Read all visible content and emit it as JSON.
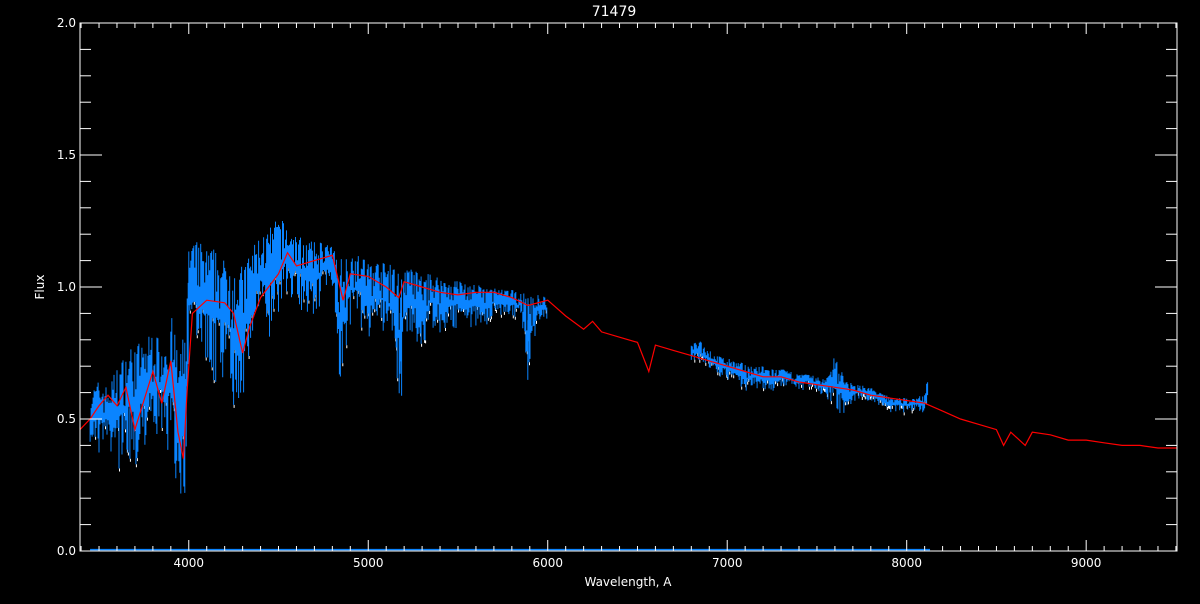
{
  "chart_data": {
    "type": "line",
    "title": "71479",
    "xlabel": "Wavelength, A",
    "ylabel": "Flux",
    "xlim": [
      3394,
      9506
    ],
    "ylim": [
      0.0,
      2.0
    ],
    "x_ticks": [
      4000,
      5000,
      6000,
      7000,
      8000,
      9000
    ],
    "x_tick_labels": [
      "4000",
      "5000",
      "6000",
      "7000",
      "8000",
      "9000"
    ],
    "y_ticks": [
      0.0,
      0.5,
      1.0,
      1.5,
      2.0
    ],
    "y_tick_labels": [
      "0.0",
      "0.5",
      "1.0",
      "1.5",
      "2.0"
    ],
    "x_minor_step": 100,
    "y_minor_step": 0.1,
    "grid": false,
    "colors": {
      "background": "#000000",
      "axes": "#ffffff",
      "observed": "#0a84ff",
      "observed_alt": "#ffffff",
      "model": "#ff0000"
    },
    "series": [
      {
        "role": "observed",
        "format": "wavelength, flux_min, flux_max",
        "segments": [
          [
            [
              3450,
              0.4,
              0.6
            ],
            [
              3500,
              0.35,
              0.65
            ],
            [
              3550,
              0.38,
              0.62
            ],
            [
              3600,
              0.3,
              0.7
            ],
            [
              3650,
              0.35,
              0.75
            ],
            [
              3700,
              0.28,
              0.8
            ],
            [
              3750,
              0.4,
              0.78
            ],
            [
              3800,
              0.38,
              0.85
            ],
            [
              3850,
              0.45,
              0.78
            ],
            [
              3900,
              0.3,
              0.9
            ],
            [
              3950,
              0.12,
              0.75
            ],
            [
              3980,
              0.2,
              0.85
            ],
            [
              4000,
              0.75,
              1.15
            ],
            [
              4050,
              0.7,
              1.18
            ],
            [
              4100,
              0.65,
              1.15
            ],
            [
              4150,
              0.62,
              1.15
            ],
            [
              4200,
              0.65,
              1.1
            ],
            [
              4250,
              0.55,
              1.1
            ],
            [
              4300,
              0.5,
              1.08
            ],
            [
              4350,
              0.75,
              1.15
            ],
            [
              4400,
              0.85,
              1.2
            ],
            [
              4450,
              0.8,
              1.22
            ],
            [
              4500,
              0.9,
              1.27
            ],
            [
              4550,
              0.95,
              1.23
            ],
            [
              4600,
              0.92,
              1.2
            ],
            [
              4650,
              0.9,
              1.18
            ],
            [
              4700,
              0.85,
              1.17
            ],
            [
              4750,
              0.95,
              1.18
            ],
            [
              4800,
              1.0,
              1.15
            ],
            [
              4850,
              0.55,
              1.12
            ],
            [
              4900,
              0.85,
              1.14
            ],
            [
              4950,
              0.85,
              1.12
            ],
            [
              5000,
              0.8,
              1.1
            ],
            [
              5050,
              0.82,
              1.1
            ],
            [
              5100,
              0.8,
              1.09
            ],
            [
              5150,
              0.7,
              1.08
            ],
            [
              5180,
              0.5,
              1.05
            ],
            [
              5200,
              0.75,
              1.07
            ],
            [
              5250,
              0.8,
              1.07
            ],
            [
              5300,
              0.7,
              1.05
            ],
            [
              5350,
              0.85,
              1.05
            ],
            [
              5400,
              0.82,
              1.04
            ],
            [
              5450,
              0.82,
              1.03
            ],
            [
              5500,
              0.85,
              1.03
            ],
            [
              5550,
              0.82,
              1.02
            ],
            [
              5600,
              0.85,
              1.01
            ],
            [
              5650,
              0.85,
              1.0
            ],
            [
              5700,
              0.88,
              1.0
            ],
            [
              5750,
              0.88,
              0.99
            ],
            [
              5800,
              0.88,
              0.99
            ],
            [
              5850,
              0.88,
              0.98
            ],
            [
              5890,
              0.62,
              0.97
            ],
            [
              5950,
              0.87,
              0.97
            ],
            [
              6000,
              0.88,
              0.96
            ]
          ],
          [
            [
              6800,
              0.72,
              0.78
            ],
            [
              6850,
              0.7,
              0.8
            ],
            [
              6900,
              0.68,
              0.76
            ],
            [
              6950,
              0.66,
              0.74
            ],
            [
              7000,
              0.65,
              0.73
            ],
            [
              7050,
              0.62,
              0.72
            ],
            [
              7100,
              0.6,
              0.71
            ],
            [
              7150,
              0.62,
              0.7
            ],
            [
              7200,
              0.6,
              0.7
            ],
            [
              7250,
              0.6,
              0.69
            ],
            [
              7300,
              0.62,
              0.69
            ],
            [
              7350,
              0.62,
              0.68
            ],
            [
              7400,
              0.6,
              0.67
            ],
            [
              7450,
              0.62,
              0.67
            ],
            [
              7500,
              0.6,
              0.66
            ],
            [
              7550,
              0.58,
              0.65
            ],
            [
              7600,
              0.5,
              0.76
            ],
            [
              7650,
              0.52,
              0.66
            ],
            [
              7700,
              0.56,
              0.63
            ],
            [
              7750,
              0.58,
              0.63
            ],
            [
              7800,
              0.56,
              0.62
            ],
            [
              7850,
              0.55,
              0.6
            ],
            [
              7900,
              0.51,
              0.59
            ],
            [
              7950,
              0.53,
              0.58
            ],
            [
              8000,
              0.52,
              0.58
            ],
            [
              8050,
              0.53,
              0.58
            ],
            [
              8100,
              0.52,
              0.6
            ],
            [
              8120,
              0.57,
              0.67
            ]
          ]
        ],
        "error_level": {
          "x_range": [
            3450,
            8130
          ],
          "flux": 0.005
        }
      },
      {
        "role": "model",
        "points": [
          [
            3394,
            0.46
          ],
          [
            3450,
            0.5
          ],
          [
            3500,
            0.55
          ],
          [
            3550,
            0.59
          ],
          [
            3600,
            0.55
          ],
          [
            3650,
            0.62
          ],
          [
            3700,
            0.46
          ],
          [
            3750,
            0.57
          ],
          [
            3800,
            0.68
          ],
          [
            3850,
            0.56
          ],
          [
            3900,
            0.72
          ],
          [
            3940,
            0.45
          ],
          [
            3970,
            0.35
          ],
          [
            3990,
            0.6
          ],
          [
            4020,
            0.9
          ],
          [
            4100,
            0.95
          ],
          [
            4200,
            0.94
          ],
          [
            4250,
            0.9
          ],
          [
            4300,
            0.75
          ],
          [
            4340,
            0.85
          ],
          [
            4400,
            0.96
          ],
          [
            4500,
            1.05
          ],
          [
            4550,
            1.13
          ],
          [
            4600,
            1.08
          ],
          [
            4700,
            1.1
          ],
          [
            4800,
            1.12
          ],
          [
            4860,
            0.95
          ],
          [
            4900,
            1.05
          ],
          [
            5000,
            1.04
          ],
          [
            5100,
            1.0
          ],
          [
            5170,
            0.96
          ],
          [
            5200,
            1.02
          ],
          [
            5300,
            1.0
          ],
          [
            5400,
            0.98
          ],
          [
            5500,
            0.97
          ],
          [
            5600,
            0.98
          ],
          [
            5700,
            0.98
          ],
          [
            5800,
            0.96
          ],
          [
            5890,
            0.93
          ],
          [
            6000,
            0.95
          ],
          [
            6050,
            0.92
          ],
          [
            6100,
            0.89
          ],
          [
            6200,
            0.84
          ],
          [
            6250,
            0.87
          ],
          [
            6300,
            0.83
          ],
          [
            6400,
            0.81
          ],
          [
            6500,
            0.79
          ],
          [
            6563,
            0.68
          ],
          [
            6600,
            0.78
          ],
          [
            6700,
            0.76
          ],
          [
            6800,
            0.74
          ],
          [
            6900,
            0.72
          ],
          [
            7000,
            0.7
          ],
          [
            7100,
            0.68
          ],
          [
            7200,
            0.66
          ],
          [
            7300,
            0.66
          ],
          [
            7400,
            0.64
          ],
          [
            7500,
            0.63
          ],
          [
            7600,
            0.62
          ],
          [
            7700,
            0.61
          ],
          [
            7800,
            0.59
          ],
          [
            7900,
            0.58
          ],
          [
            8000,
            0.57
          ],
          [
            8100,
            0.56
          ],
          [
            8200,
            0.53
          ],
          [
            8300,
            0.5
          ],
          [
            8400,
            0.48
          ],
          [
            8500,
            0.46
          ],
          [
            8540,
            0.4
          ],
          [
            8580,
            0.45
          ],
          [
            8660,
            0.4
          ],
          [
            8700,
            0.45
          ],
          [
            8800,
            0.44
          ],
          [
            8900,
            0.42
          ],
          [
            9000,
            0.42
          ],
          [
            9100,
            0.41
          ],
          [
            9200,
            0.4
          ],
          [
            9300,
            0.4
          ],
          [
            9400,
            0.39
          ],
          [
            9506,
            0.39
          ]
        ]
      }
    ]
  }
}
